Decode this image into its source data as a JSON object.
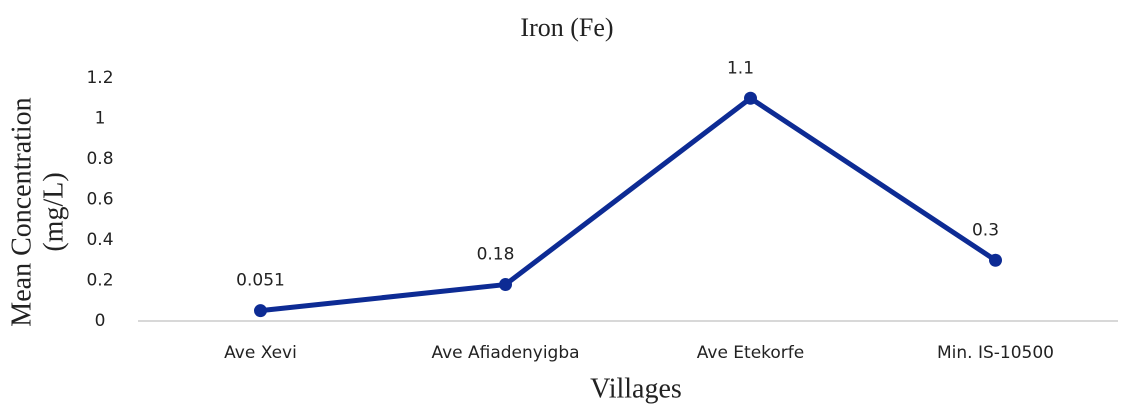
{
  "chart_data": {
    "type": "line",
    "title": "Iron (Fe)",
    "x_label": "Villages",
    "y_label": [
      "Mean Concentration",
      "(mg/L)"
    ],
    "categories": [
      "Ave Xevi",
      "Ave Afiadenyigba",
      "Ave Etekorfe",
      "Min. IS-10500"
    ],
    "values": [
      0.051,
      0.18,
      1.1,
      0.3
    ],
    "color": "#0d2b94",
    "ylim": [
      0,
      1.2
    ],
    "yticks": [
      0,
      0.2,
      0.4,
      0.6,
      0.8,
      1,
      1.2
    ],
    "grid": false
  }
}
